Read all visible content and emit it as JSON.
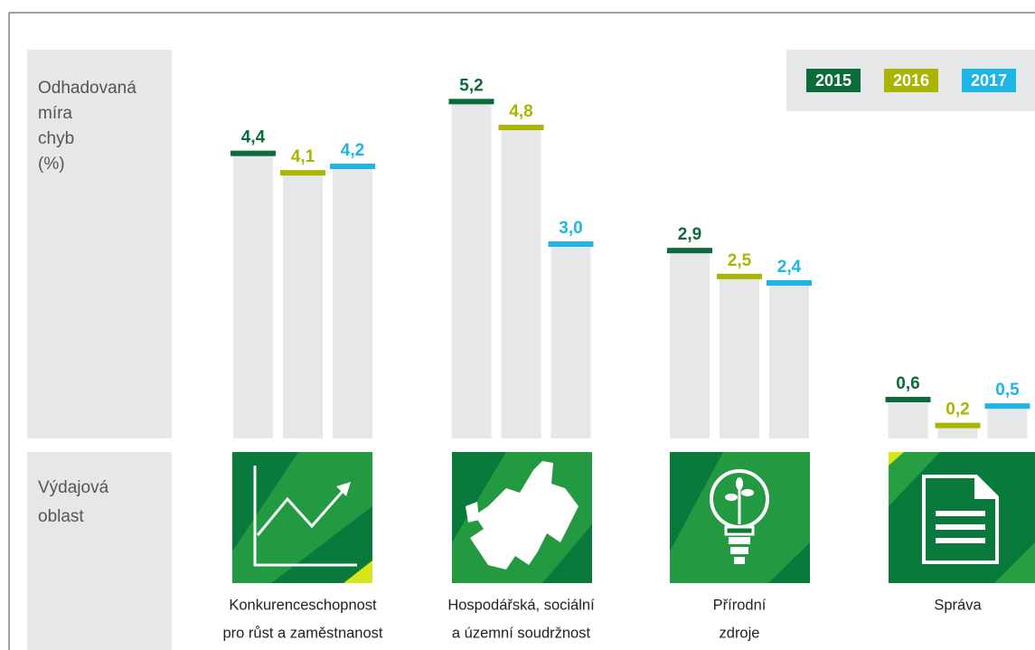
{
  "chart_data": {
    "type": "bar",
    "y_label": [
      "Odhadovaná",
      "míra",
      "chyb",
      "(%)"
    ],
    "x_label": [
      "Výdajová",
      "oblast"
    ],
    "categories": [
      [
        "Konkurenceschopnost",
        "pro růst a zaměstnanost"
      ],
      [
        "Hospodářská, sociální",
        "a územní soudržnost"
      ],
      [
        "Přírodní",
        "zdroje"
      ],
      [
        "Správa"
      ]
    ],
    "series": [
      {
        "name": "2015",
        "color": "#0b6b3a",
        "values": [
          4.4,
          5.2,
          2.9,
          0.6
        ],
        "value_labels": [
          "4,4",
          "5,2",
          "2,9",
          "0,6"
        ]
      },
      {
        "name": "2016",
        "color": "#a9b500",
        "values": [
          4.1,
          4.8,
          2.5,
          0.2
        ],
        "value_labels": [
          "4,1",
          "4,8",
          "2,5",
          "0,2"
        ]
      },
      {
        "name": "2017",
        "color": "#1db5e5",
        "values": [
          4.2,
          3.0,
          2.4,
          0.5
        ],
        "value_labels": [
          "4,2",
          "3,0",
          "2,4",
          "0,5"
        ]
      }
    ],
    "ylim": [
      0,
      6
    ],
    "legend": "top-right"
  }
}
